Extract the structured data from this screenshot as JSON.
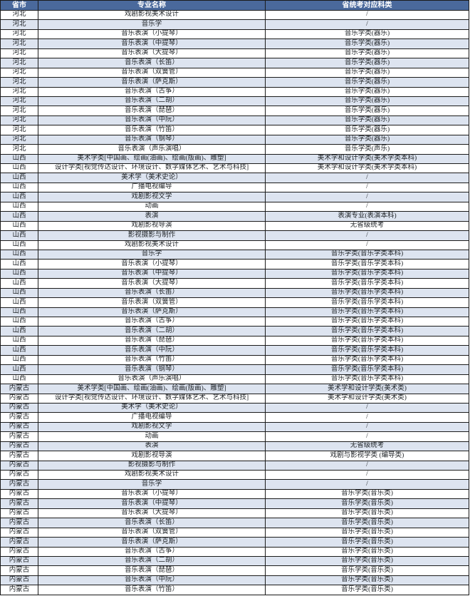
{
  "colors": {
    "header_bg": "#4a699c",
    "header_text": "#ffffff",
    "band_row_bg": "#dde4f0",
    "row_bg": "#ffffff",
    "border": "#1b1b1b",
    "body_text": "#212529"
  },
  "table": {
    "columns": [
      {
        "key": "province",
        "label": "省市"
      },
      {
        "key": "major",
        "label": "专业名称"
      },
      {
        "key": "category",
        "label": "省统考对应科类"
      }
    ],
    "rows": [
      {
        "province": "河北",
        "major": "戏剧影视美术设计",
        "category": "/"
      },
      {
        "province": "河北",
        "major": "音乐学",
        "category": "/"
      },
      {
        "province": "河北",
        "major": "音乐表演（小提琴）",
        "category": "音乐学类(器乐)"
      },
      {
        "province": "河北",
        "major": "音乐表演（中提琴）",
        "category": "音乐学类(器乐)"
      },
      {
        "province": "河北",
        "major": "音乐表演（大提琴）",
        "category": "音乐学类(器乐)"
      },
      {
        "province": "河北",
        "major": "音乐表演（长笛）",
        "category": "音乐学类(器乐)"
      },
      {
        "province": "河北",
        "major": "音乐表演（双簧管）",
        "category": "音乐学类(器乐)"
      },
      {
        "province": "河北",
        "major": "音乐表演（萨克斯）",
        "category": "音乐学类(器乐)"
      },
      {
        "province": "河北",
        "major": "音乐表演（古筝）",
        "category": "音乐学类(器乐)"
      },
      {
        "province": "河北",
        "major": "音乐表演（二胡）",
        "category": "音乐学类(器乐)"
      },
      {
        "province": "河北",
        "major": "音乐表演（琵琶）",
        "category": "音乐学类(器乐)"
      },
      {
        "province": "河北",
        "major": "音乐表演（中阮）",
        "category": "音乐学类(器乐)"
      },
      {
        "province": "河北",
        "major": "音乐表演（竹笛）",
        "category": "音乐学类(器乐)"
      },
      {
        "province": "河北",
        "major": "音乐表演（钢琴）",
        "category": "音乐学类(器乐)"
      },
      {
        "province": "河北",
        "major": "音乐表演（声乐演唱）",
        "category": "音乐学类(声乐)"
      },
      {
        "province": "山西",
        "major": "美术学类[中国画、绘画(油画)、绘画(版画)、雕塑]",
        "category": "美术学和设计学类(美术学类本科)"
      },
      {
        "province": "山西",
        "major": "设计学类[视觉传达设计、环境设计、数字媒体艺术、艺术与科技]",
        "category": "美术学和设计学类(美术学类本科)"
      },
      {
        "province": "山西",
        "major": "美术学（美术史论）",
        "category": "/"
      },
      {
        "province": "山西",
        "major": "广播电视编导",
        "category": "/"
      },
      {
        "province": "山西",
        "major": "戏剧影视文学",
        "category": "/"
      },
      {
        "province": "山西",
        "major": "动画",
        "category": "/"
      },
      {
        "province": "山西",
        "major": "表演",
        "category": "表演专业(表演本科)"
      },
      {
        "province": "山西",
        "major": "戏剧影视导演",
        "category": "无省级统考"
      },
      {
        "province": "山西",
        "major": "影视摄影与制作",
        "category": "/"
      },
      {
        "province": "山西",
        "major": "戏剧影视美术设计",
        "category": "/"
      },
      {
        "province": "山西",
        "major": "音乐学",
        "category": "音乐学类(音乐学类本科)"
      },
      {
        "province": "山西",
        "major": "音乐表演（小提琴）",
        "category": "音乐学类(音乐学类本科)"
      },
      {
        "province": "山西",
        "major": "音乐表演（中提琴）",
        "category": "音乐学类(音乐学类本科)"
      },
      {
        "province": "山西",
        "major": "音乐表演（大提琴）",
        "category": "音乐学类(音乐学类本科)"
      },
      {
        "province": "山西",
        "major": "音乐表演（长笛）",
        "category": "音乐学类(音乐学类本科)"
      },
      {
        "province": "山西",
        "major": "音乐表演（双簧管）",
        "category": "音乐学类(音乐学类本科)"
      },
      {
        "province": "山西",
        "major": "音乐表演（萨克斯）",
        "category": "音乐学类(音乐学类本科)"
      },
      {
        "province": "山西",
        "major": "音乐表演（古筝）",
        "category": "音乐学类(音乐学类本科)"
      },
      {
        "province": "山西",
        "major": "音乐表演（二胡）",
        "category": "音乐学类(音乐学类本科)"
      },
      {
        "province": "山西",
        "major": "音乐表演（琵琶）",
        "category": "音乐学类(音乐学类本科)"
      },
      {
        "province": "山西",
        "major": "音乐表演（中阮）",
        "category": "音乐学类(音乐学类本科)"
      },
      {
        "province": "山西",
        "major": "音乐表演（竹笛）",
        "category": "音乐学类(音乐学类本科)"
      },
      {
        "province": "山西",
        "major": "音乐表演（钢琴）",
        "category": "音乐学类(音乐学类本科)"
      },
      {
        "province": "山西",
        "major": "音乐表演（声乐演唱）",
        "category": "音乐学类(音乐学类本科)"
      },
      {
        "province": "内蒙古",
        "major": "美术学类[中国画、绘画(油画)、绘画(版画)、雕塑]",
        "category": "美术学和设计学类(美术类)"
      },
      {
        "province": "内蒙古",
        "major": "设计学类[视觉传达设计、环境设计、数字媒体艺术、艺术与科技]",
        "category": "美术学和设计学类(美术类)"
      },
      {
        "province": "内蒙古",
        "major": "美术学（美术史论）",
        "category": "/"
      },
      {
        "province": "内蒙古",
        "major": "广播电视编导",
        "category": "/"
      },
      {
        "province": "内蒙古",
        "major": "戏剧影视文学",
        "category": "/"
      },
      {
        "province": "内蒙古",
        "major": "动画",
        "category": "/"
      },
      {
        "province": "内蒙古",
        "major": "表演",
        "category": "无省级统考"
      },
      {
        "province": "内蒙古",
        "major": "戏剧影视导演",
        "category": "戏剧与影视学类 (编导类)"
      },
      {
        "province": "内蒙古",
        "major": "影视摄影与制作",
        "category": "/"
      },
      {
        "province": "内蒙古",
        "major": "戏剧影视美术设计",
        "category": "/"
      },
      {
        "province": "内蒙古",
        "major": "音乐学",
        "category": "/"
      },
      {
        "province": "内蒙古",
        "major": "音乐表演（小提琴）",
        "category": "音乐学类(音乐类)"
      },
      {
        "province": "内蒙古",
        "major": "音乐表演（中提琴）",
        "category": "音乐学类(音乐类)"
      },
      {
        "province": "内蒙古",
        "major": "音乐表演（大提琴）",
        "category": "音乐学类(音乐类)"
      },
      {
        "province": "内蒙古",
        "major": "音乐表演（长笛）",
        "category": "音乐学类(音乐类)"
      },
      {
        "province": "内蒙古",
        "major": "音乐表演（双簧管）",
        "category": "音乐学类(音乐类)"
      },
      {
        "province": "内蒙古",
        "major": "音乐表演（萨克斯）",
        "category": "音乐学类(音乐类)"
      },
      {
        "province": "内蒙古",
        "major": "音乐表演（古筝）",
        "category": "音乐学类(音乐类)"
      },
      {
        "province": "内蒙古",
        "major": "音乐表演（二胡）",
        "category": "音乐学类(音乐类)"
      },
      {
        "province": "内蒙古",
        "major": "音乐表演（琵琶）",
        "category": "音乐学类(音乐类)"
      },
      {
        "province": "内蒙古",
        "major": "音乐表演（中阮）",
        "category": "音乐学类(音乐类)"
      },
      {
        "province": "内蒙古",
        "major": "音乐表演（竹笛）",
        "category": "音乐学类(音乐类)"
      }
    ]
  }
}
